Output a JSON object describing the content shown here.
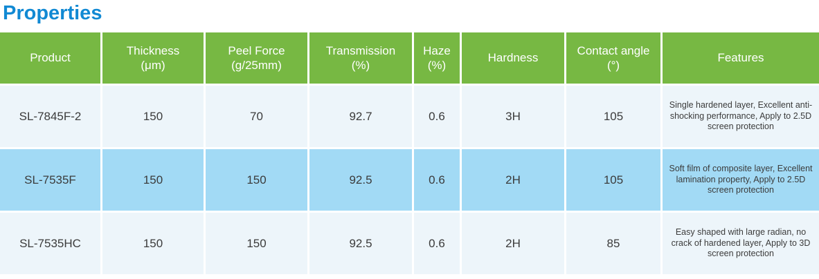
{
  "page": {
    "title": "Properties"
  },
  "colors": {
    "title_text": "#1189d3",
    "header_bg": "#77b843",
    "header_text": "#ffffff",
    "row_light_bg": "#edf5fa",
    "row_highlight_bg": "#a2daf5",
    "cell_text": "#3b3b3b"
  },
  "table": {
    "headers": {
      "product": "Product",
      "thickness": "Thickness\n(μm)",
      "peel_force": "Peel Force\n(g/25mm)",
      "transmission": "Transmission\n(%)",
      "haze": "Haze\n(%)",
      "hardness": "Hardness",
      "contact_angle": "Contact angle\n(°)",
      "features": "Features"
    },
    "rows": [
      {
        "product": "SL-7845F-2",
        "thickness": "150",
        "peel_force": "70",
        "transmission": "92.7",
        "haze": "0.6",
        "hardness": "3H",
        "contact_angle": "105",
        "features": "Single hardened layer, Excellent anti-shocking performance, Apply to 2.5D screen protection",
        "highlighted": false
      },
      {
        "product": "SL-7535F",
        "thickness": "150",
        "peel_force": "150",
        "transmission": "92.5",
        "haze": "0.6",
        "hardness": "2H",
        "contact_angle": "105",
        "features": "Soft film of composite layer, Excellent lamination property, Apply to 2.5D screen protection",
        "highlighted": true
      },
      {
        "product": "SL-7535HC",
        "thickness": "150",
        "peel_force": "150",
        "transmission": "92.5",
        "haze": "0.6",
        "hardness": "2H",
        "contact_angle": "85",
        "features": "Easy shaped with large radian, no crack of hardened layer, Apply to 3D screen protection",
        "highlighted": false
      }
    ]
  }
}
